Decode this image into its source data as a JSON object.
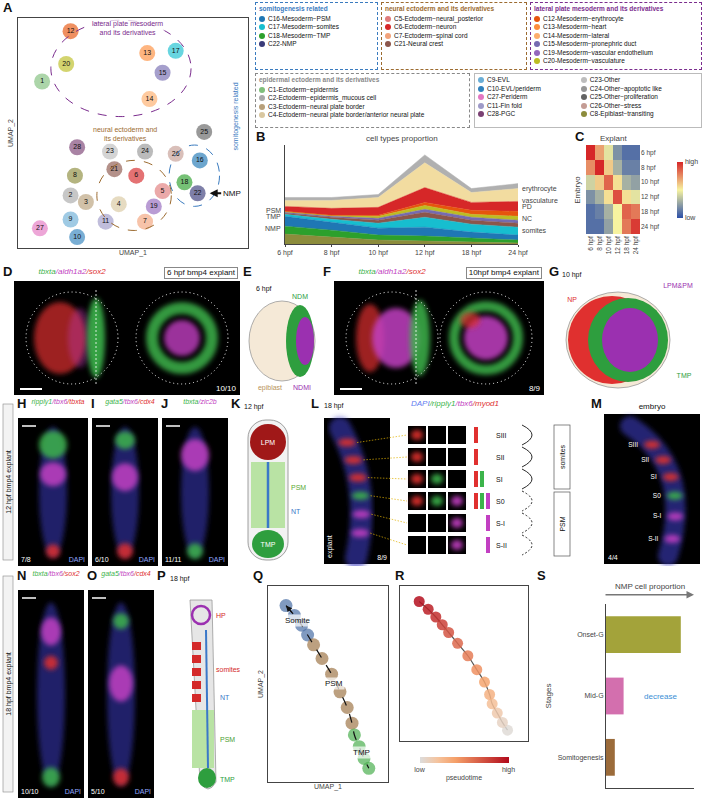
{
  "chart_data": [
    {
      "panel": "A",
      "type": "scatter",
      "x_label": "UMAP_1",
      "y_label": "UMAP_2",
      "xlim": [
        0,
        10.5
      ],
      "ylim": [
        0,
        10.5
      ],
      "xticks": [],
      "yticks": [],
      "tick_labels": false,
      "points": [
        {
          "label": "1",
          "x": 1.1,
          "y": 7.6,
          "color": "#7fbf7b"
        },
        {
          "label": "2",
          "x": 2.4,
          "y": 2.4,
          "color": "#a9a9a9"
        },
        {
          "label": "3",
          "x": 3.1,
          "y": 2.1,
          "color": "#b8a07a"
        },
        {
          "label": "4",
          "x": 4.6,
          "y": 2.0,
          "color": "#d9c7a0"
        },
        {
          "label": "5",
          "x": 6.6,
          "y": 2.6,
          "color": "#e07b7b"
        },
        {
          "label": "6",
          "x": 5.4,
          "y": 3.3,
          "color": "#d62728"
        },
        {
          "label": "7",
          "x": 5.8,
          "y": 1.2,
          "color": "#f2a37b"
        },
        {
          "label": "8",
          "x": 2.6,
          "y": 3.3,
          "color": "#8c8c3c"
        },
        {
          "label": "9",
          "x": 2.4,
          "y": 1.3,
          "color": "#6baed6"
        },
        {
          "label": "10",
          "x": 2.7,
          "y": 0.5,
          "color": "#3182bd"
        },
        {
          "label": "11",
          "x": 4.0,
          "y": 1.2,
          "color": "#9e9ac8"
        },
        {
          "label": "12",
          "x": 2.4,
          "y": 9.9,
          "color": "#e6550d"
        },
        {
          "label": "13",
          "x": 5.9,
          "y": 8.9,
          "color": "#fd8d3c"
        },
        {
          "label": "14",
          "x": 6.0,
          "y": 6.8,
          "color": "#fdae6b"
        },
        {
          "label": "15",
          "x": 6.6,
          "y": 8.0,
          "color": "#756bb1"
        },
        {
          "label": "16",
          "x": 8.3,
          "y": 4.0,
          "color": "#1f77b4"
        },
        {
          "label": "17",
          "x": 7.2,
          "y": 9.0,
          "color": "#17becf"
        },
        {
          "label": "18",
          "x": 7.6,
          "y": 3.0,
          "color": "#2ca02c"
        },
        {
          "label": "19",
          "x": 6.2,
          "y": 1.9,
          "color": "#9467bd"
        },
        {
          "label": "20",
          "x": 2.2,
          "y": 8.4,
          "color": "#bcbd22"
        },
        {
          "label": "21",
          "x": 4.4,
          "y": 3.6,
          "color": "#8c564b"
        },
        {
          "label": "22",
          "x": 8.2,
          "y": 2.5,
          "color": "#393b79"
        },
        {
          "label": "23",
          "x": 4.2,
          "y": 4.4,
          "color": "#bdbdbd"
        },
        {
          "label": "24",
          "x": 5.8,
          "y": 4.4,
          "color": "#969696"
        },
        {
          "label": "25",
          "x": 8.5,
          "y": 5.3,
          "color": "#636363"
        },
        {
          "label": "26",
          "x": 7.2,
          "y": 4.3,
          "color": "#c49c94"
        },
        {
          "label": "27",
          "x": 1.0,
          "y": 0.9,
          "color": "#e377c2"
        },
        {
          "label": "28",
          "x": 2.7,
          "y": 4.6,
          "color": "#7b4173"
        }
      ],
      "annotations": [
        {
          "text": "lateral plate mesoderm and its derivatives",
          "color": "#7b2d8e"
        },
        {
          "text": "somitogenesis related",
          "color": "#3a7bbf"
        },
        {
          "text": "neural ectoderm and its derivatives",
          "color": "#9c6b30"
        },
        {
          "text": "NMP",
          "color": "#111111"
        }
      ],
      "legend_groups": [
        {
          "title": "somitogenesis related",
          "color": "#3a7bbf",
          "items": [
            {
              "label": "C16-Mesoderm−PSM",
              "color": "#1f77b4"
            },
            {
              "label": "C17-Mesoderm−somites",
              "color": "#17becf"
            },
            {
              "label": "C18-Mesoderm−TMP",
              "color": "#2ca02c"
            },
            {
              "label": "C22-NMP",
              "color": "#393b79"
            }
          ]
        },
        {
          "title": "neural ectoderm and its derivatives",
          "color": "#9c6b30",
          "items": [
            {
              "label": "C5-Ectoderm−neural_posterior",
              "color": "#e07b7b"
            },
            {
              "label": "C6-Ectoderm−neuron",
              "color": "#d62728"
            },
            {
              "label": "C7-Ectoderm−spinal cord",
              "color": "#f2a37b"
            },
            {
              "label": "C21-Neural crest",
              "color": "#8c564b"
            }
          ]
        },
        {
          "title": "lateral plate mesoderm and its derivatives",
          "color": "#7b2d8e",
          "items": [
            {
              "label": "C12-Mesoderm−erythrocyte",
              "color": "#e6550d"
            },
            {
              "label": "C13-Mesoderm−heart",
              "color": "#fd8d3c"
            },
            {
              "label": "C14-Mesoderm−lateral",
              "color": "#fdae6b"
            },
            {
              "label": "C15-Mesoderm−pronephric duct",
              "color": "#756bb1"
            },
            {
              "label": "C19-Mesoderm−vascular endothelium",
              "color": "#9467bd"
            },
            {
              "label": "C20-Mesoderm−vasculature",
              "color": "#bcbd22"
            }
          ]
        },
        {
          "title": "epidermal ectoderm and its derivatives",
          "color": "#888888",
          "items": [
            {
              "label": "C1-Ectoderm−epidermis",
              "color": "#7fbf7b"
            },
            {
              "label": "C2-Ectoderm−epidermis_mucous cell",
              "color": "#a9a9a9"
            },
            {
              "label": "C3-Ectoderm−neural plate border",
              "color": "#b8a07a"
            },
            {
              "label": "C4-Ectoderm−neural plate border/anterior neural plate",
              "color": "#d9c7a0"
            }
          ]
        },
        {
          "items": [
            {
              "label": "C9-EVL",
              "color": "#6baed6"
            },
            {
              "label": "C10-EVL/periderm",
              "color": "#3182bd"
            },
            {
              "label": "C27-Periderm",
              "color": "#e377c2"
            },
            {
              "label": "C11-Fin fold",
              "color": "#9e9ac8"
            },
            {
              "label": "C28-PGC",
              "color": "#7b4173"
            },
            {
              "label": "C23-Other",
              "color": "#bdbdbd"
            },
            {
              "label": "C24-Other−apoptotic like",
              "color": "#969696"
            },
            {
              "label": "C25-Other−proliferation",
              "color": "#636363"
            },
            {
              "label": "C26-Other−stress",
              "color": "#c49c94"
            },
            {
              "label": "C8-Epiblast−transiting",
              "color": "#8c8c3c"
            }
          ]
        }
      ]
    },
    {
      "panel": "B",
      "type": "area",
      "stacked": true,
      "title": "cell types proportion",
      "categories": [
        "6 hpf",
        "8 hpf",
        "10 hpf",
        "12 hpf",
        "18 hpf",
        "24 hpf"
      ],
      "ylim": [
        0,
        1
      ],
      "yticks": [],
      "tick_labels": "x",
      "left_labels": [
        "PSM",
        "TMP",
        "NMP"
      ],
      "right_labels": [
        "erythrocyte",
        "vasculature",
        "PD",
        "NC",
        "somites"
      ],
      "series": [
        {
          "color": "#8c8c3c",
          "values": [
            0.1,
            0.07,
            0.04,
            0.03,
            0.02,
            0.01
          ]
        },
        {
          "color": "#2ca02c",
          "values": [
            0.08,
            0.07,
            0.05,
            0.05,
            0.04,
            0.03
          ]
        },
        {
          "color": "#1f77b4",
          "values": [
            0.1,
            0.08,
            0.07,
            0.09,
            0.06,
            0.05
          ]
        },
        {
          "color": "#17becf",
          "values": [
            0.02,
            0.03,
            0.05,
            0.1,
            0.08,
            0.08
          ]
        },
        {
          "color": "#8c564b",
          "values": [
            0.01,
            0.02,
            0.03,
            0.05,
            0.04,
            0.04
          ]
        },
        {
          "color": "#756bb1",
          "values": [
            0.01,
            0.01,
            0.02,
            0.03,
            0.03,
            0.03
          ]
        },
        {
          "color": "#bcbd22",
          "values": [
            0.01,
            0.01,
            0.02,
            0.04,
            0.03,
            0.04
          ]
        },
        {
          "color": "#e6550d",
          "values": [
            0.0,
            0.0,
            0.01,
            0.03,
            0.04,
            0.05
          ]
        },
        {
          "color": "#d62728",
          "values": [
            0.05,
            0.07,
            0.08,
            0.15,
            0.08,
            0.1
          ]
        },
        {
          "color": "#f2dca0",
          "values": [
            0.06,
            0.08,
            0.1,
            0.25,
            0.1,
            0.13
          ]
        },
        {
          "color": "#b0b0b0",
          "values": [
            0.03,
            0.03,
            0.03,
            0.08,
            0.04,
            0.05
          ]
        }
      ]
    },
    {
      "panel": "C",
      "type": "heatmap",
      "x_label": "Explant",
      "y_label": "Embryo",
      "x": [
        "6 hpf",
        "8 hpf",
        "10 hpf",
        "12 hpf",
        "18 hpf",
        "24 hpf"
      ],
      "y": [
        "6 hpf",
        "8 hpf",
        "10 hpf",
        "12 hpf",
        "18 hpf",
        "24 hpf"
      ],
      "cells": [
        [
          1.0,
          0.7,
          0.45,
          0.2,
          0.1,
          0.1
        ],
        [
          0.75,
          1.0,
          0.6,
          0.3,
          0.15,
          0.15
        ],
        [
          0.4,
          0.6,
          0.85,
          0.55,
          0.3,
          0.25
        ],
        [
          0.2,
          0.3,
          0.55,
          0.9,
          0.55,
          0.45
        ],
        [
          0.1,
          0.15,
          0.3,
          0.5,
          0.85,
          0.8
        ],
        [
          0.1,
          0.1,
          0.25,
          0.5,
          0.8,
          0.95
        ]
      ],
      "colorbar": {
        "range": [
          0,
          1
        ],
        "ticks": [
          {
            "value": 0,
            "label": "low"
          },
          {
            "value": 1,
            "label": "high"
          }
        ]
      }
    },
    {
      "panel": "Q",
      "type": "scatter",
      "x_label": "UMAP_1",
      "y_label": "UMAP_2",
      "xlim": [
        0,
        10
      ],
      "ylim": [
        0,
        10
      ],
      "xticks": [],
      "yticks": [],
      "tick_labels": false,
      "series": [
        {
          "name": "Somite",
          "color": "#4a6fa5",
          "x": [
            1.5,
            2.2,
            2.8,
            3.3
          ],
          "y": [
            9.0,
            8.5,
            8.0,
            7.5
          ]
        },
        {
          "name": "PSM",
          "color": "#a0784a",
          "x": [
            3.8,
            4.5,
            5.3,
            6.0,
            6.6,
            7.0
          ],
          "y": [
            7.0,
            6.3,
            5.5,
            4.6,
            3.8,
            3.0
          ]
        },
        {
          "name": "TMP",
          "color": "#4caf50",
          "x": [
            7.2,
            7.6,
            8.0,
            8.4
          ],
          "y": [
            2.4,
            1.8,
            1.2,
            0.7
          ]
        }
      ]
    },
    {
      "panel": "R",
      "type": "scatter",
      "xlim": [
        0,
        10
      ],
      "ylim": [
        0,
        10
      ],
      "xticks": [],
      "yticks": [],
      "tick_labels": false,
      "x": [
        8.4,
        8.0,
        7.6,
        7.2,
        7.0,
        6.6,
        6.0,
        5.3,
        4.5,
        3.8,
        3.3,
        2.8,
        2.2,
        1.5
      ],
      "y": [
        0.7,
        1.2,
        1.8,
        2.4,
        3.0,
        3.8,
        4.6,
        5.5,
        6.3,
        7.0,
        7.5,
        8.0,
        8.5,
        9.0
      ],
      "pseudotime": [
        0.02,
        0.08,
        0.15,
        0.22,
        0.3,
        0.38,
        0.46,
        0.54,
        0.62,
        0.7,
        0.78,
        0.85,
        0.92,
        0.98
      ],
      "colorbar": {
        "title": "pseudotime",
        "range": [
          0,
          1
        ],
        "ticks": [
          {
            "value": 0,
            "label": "low"
          },
          {
            "value": 1,
            "label": "high"
          }
        ]
      }
    },
    {
      "panel": "S",
      "type": "bar",
      "orientation": "horizontal",
      "title": "NMP cell proportion",
      "y_label": "Stages",
      "categories": [
        "Onset-G",
        "Mid-G",
        "Somitogenesis"
      ],
      "values": [
        0.85,
        0.2,
        0.1
      ],
      "colors": [
        "#a3a33a",
        "#d36fae",
        "#9b6b3a"
      ],
      "xlim": [
        0,
        1
      ],
      "xticks": [],
      "tick_labels": "y",
      "annotations": [
        {
          "text": "decrease",
          "color": "#3a8fd6"
        }
      ]
    }
  ],
  "diagrams": {
    "group_labels": [
      "12 hpf bmp4 explant",
      "18 hpf bmp4 explant"
    ],
    "D": {
      "letter": "D",
      "header": [
        {
          "text": "tbxta",
          "color": "#3cb44b"
        },
        {
          "text": "/aldh1a2",
          "color": "#c23fc2"
        },
        {
          "text": "/sox2",
          "color": "#e0302f"
        }
      ],
      "subtitle": "6 hpf bmp4 explant",
      "count": "10/10"
    },
    "E": {
      "letter": "E",
      "stage": "6 hpf",
      "labels": [
        {
          "text": "epiblast",
          "color": "#b8935a"
        },
        {
          "text": "NDM",
          "color": "#2e9e3e"
        },
        {
          "text": "NDMI",
          "color": "#9b30b0"
        }
      ]
    },
    "F": {
      "letter": "F",
      "header": [
        {
          "text": "tbxta",
          "color": "#3cb44b"
        },
        {
          "text": "/aldh1a2",
          "color": "#c23fc2"
        },
        {
          "text": "/sox2",
          "color": "#e0302f"
        }
      ],
      "subtitle": "10hpf bmp4 explant",
      "count": "8/9"
    },
    "G": {
      "letter": "G",
      "stage": "10 hpf",
      "labels": [
        {
          "text": "NP",
          "color": "#e0302f"
        },
        {
          "text": "LPM&PM",
          "color": "#9b30b0"
        },
        {
          "text": "TMP",
          "color": "#2e9e3e"
        }
      ]
    },
    "H": {
      "letter": "H",
      "header": [
        {
          "text": "ripply1",
          "color": "#3cb44b"
        },
        {
          "text": "/tbx6",
          "color": "#c23fc2"
        },
        {
          "text": "/tbxta",
          "color": "#e0302f"
        }
      ],
      "count": "7/8",
      "stain": "DAPI"
    },
    "I": {
      "letter": "I",
      "header": [
        {
          "text": "gata5",
          "color": "#3cb44b"
        },
        {
          "text": "/tbx6",
          "color": "#c23fc2"
        },
        {
          "text": "/cdx4",
          "color": "#e0302f"
        }
      ],
      "count": "6/10",
      "stain": "DAPI"
    },
    "J": {
      "letter": "J",
      "header": [
        {
          "text": "tbxta",
          "color": "#3cb44b"
        },
        {
          "text": "/zic2b",
          "color": "#c23fc2"
        }
      ],
      "count": "11/11",
      "stain": "DAPI"
    },
    "K": {
      "letter": "K",
      "stage": "12 hpf",
      "labels": [
        {
          "text": "LPM",
          "color": "#a01818"
        },
        {
          "text": "PSM",
          "color": "#5aa832"
        },
        {
          "text": "NT",
          "color": "#3a78c8"
        },
        {
          "text": "TMP",
          "color": "#2e9e3e"
        }
      ]
    },
    "L": {
      "letter": "L",
      "stage": "18 hpf",
      "header": [
        {
          "text": "DAPI",
          "color": "#5f7cf0"
        },
        {
          "text": "/ripply1",
          "color": "#3cb44b"
        },
        {
          "text": "/tbx6",
          "color": "#c23fc2"
        },
        {
          "text": "/myod1",
          "color": "#e0302f"
        }
      ],
      "side_label": "explant",
      "count": "8/9",
      "somite_labels": [
        "SIII",
        "SII",
        "SI",
        "S0",
        "S-I",
        "S-II"
      ],
      "bracket_labels": [
        "somites",
        "PSM"
      ]
    },
    "M": {
      "letter": "M",
      "side_label": "embryo",
      "count": "4/4",
      "somite_labels": [
        "SIII",
        "SII",
        "SI",
        "S0",
        "S-I",
        "S-II"
      ]
    },
    "N": {
      "letter": "N",
      "header": [
        {
          "text": "tbxta",
          "color": "#3cb44b"
        },
        {
          "text": "/tbx6",
          "color": "#c23fc2"
        },
        {
          "text": "/sox2",
          "color": "#e0302f"
        }
      ],
      "count": "10/10",
      "stain": "DAPI"
    },
    "O": {
      "letter": "O",
      "header": [
        {
          "text": "gata5",
          "color": "#3cb44b"
        },
        {
          "text": "/tbx6",
          "color": "#c23fc2"
        },
        {
          "text": "/cdx4",
          "color": "#e0302f"
        }
      ],
      "count": "5/10",
      "stain": "DAPI"
    },
    "P": {
      "letter": "P",
      "stage": "18 hpf",
      "labels": [
        {
          "text": "HP",
          "color": "#d42a2a"
        },
        {
          "text": "somites",
          "color": "#d42a2a"
        },
        {
          "text": "NT",
          "color": "#3a78c8"
        },
        {
          "text": "PSM",
          "color": "#4a9e32"
        },
        {
          "text": "TMP",
          "color": "#2e9e3e"
        }
      ]
    }
  }
}
